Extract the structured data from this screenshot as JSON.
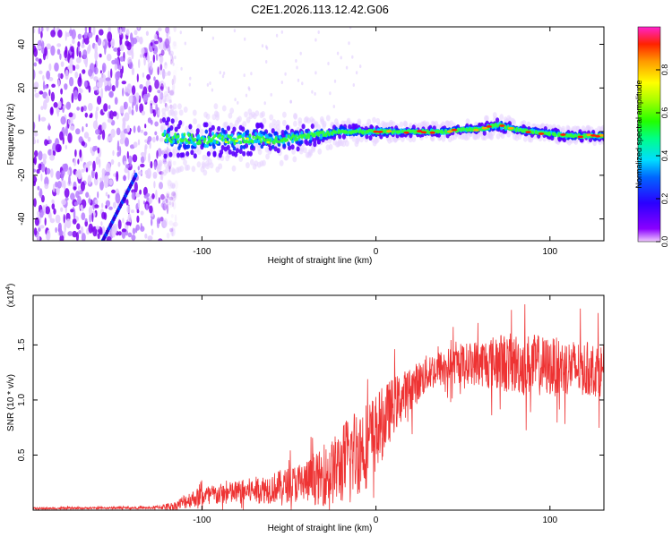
{
  "title": "C2E1.2026.113.12.42.G06",
  "chart_data": [
    {
      "type": "heatmap",
      "description_kind": "spectrogram",
      "xlabel": "Height of straight line (km)",
      "ylabel": "Frequency (Hz)",
      "xlim": [
        -197,
        131
      ],
      "ylim": [
        -50,
        48
      ],
      "xticks": [
        -100,
        0,
        100
      ],
      "yticks": [
        -40,
        -20,
        0,
        20,
        40
      ],
      "colorbar": {
        "label": "Normalized spectral amplitude",
        "range": [
          0.0,
          1.0
        ],
        "ticks": [
          0.0,
          0.2,
          0.4,
          0.6,
          0.8
        ]
      },
      "noise_region": {
        "x_from": -197,
        "x_to": -122
      },
      "diagonal_streak": {
        "x_start": -157,
        "y_start": -50,
        "x_end": -138,
        "y_end": -20
      },
      "signal_ridge": {
        "x": [
          -122,
          -110,
          -100,
          -90,
          -80,
          -70,
          -60,
          -50,
          -40,
          -30,
          -20,
          -10,
          0,
          10,
          20,
          30,
          40,
          50,
          60,
          70,
          80,
          90,
          100,
          110,
          120,
          131
        ],
        "y": [
          -3,
          -3,
          -4,
          -3,
          -4,
          -3,
          -4,
          -3,
          -2,
          -1,
          0,
          0,
          0,
          0,
          0,
          0,
          0,
          1,
          1,
          3,
          1,
          0,
          -1,
          -2,
          -2,
          -2
        ],
        "halfwidth": [
          9,
          8,
          8,
          8,
          7,
          7,
          6,
          6,
          5,
          4,
          3,
          3,
          3,
          2,
          2,
          2,
          2,
          2,
          2,
          3,
          2,
          2,
          2,
          2,
          2,
          2
        ]
      }
    },
    {
      "type": "line",
      "xlabel": "Height of straight line (km)",
      "ylabel": "SNR (10 * v/v)",
      "multiplier": "(x10^4)",
      "xlim": [
        -197,
        131
      ],
      "ylim": [
        0,
        1.95
      ],
      "xticks": [
        -100,
        0,
        100
      ],
      "yticks": [
        0.5,
        1.0,
        1.5
      ],
      "color": "#ee3333",
      "envelope": {
        "x": [
          -197,
          -150,
          -130,
          -115,
          -110,
          -100,
          -90,
          -80,
          -70,
          -60,
          -50,
          -40,
          -30,
          -20,
          -15,
          -10,
          -5,
          0,
          5,
          10,
          20,
          30,
          40,
          50,
          60,
          70,
          80,
          90,
          100,
          110,
          120,
          131
        ],
        "mean": [
          0.015,
          0.02,
          0.02,
          0.04,
          0.08,
          0.13,
          0.14,
          0.16,
          0.18,
          0.2,
          0.23,
          0.26,
          0.3,
          0.4,
          0.5,
          0.55,
          0.6,
          0.7,
          0.82,
          0.95,
          1.1,
          1.25,
          1.3,
          1.33,
          1.34,
          1.34,
          1.33,
          1.32,
          1.3,
          1.3,
          1.28,
          1.27
        ],
        "spread": [
          0.01,
          0.01,
          0.01,
          0.04,
          0.07,
          0.09,
          0.1,
          0.11,
          0.12,
          0.14,
          0.16,
          0.2,
          0.26,
          0.35,
          0.4,
          0.42,
          0.4,
          0.36,
          0.32,
          0.26,
          0.2,
          0.17,
          0.17,
          0.18,
          0.22,
          0.26,
          0.28,
          0.28,
          0.27,
          0.26,
          0.25,
          0.24
        ]
      }
    }
  ]
}
